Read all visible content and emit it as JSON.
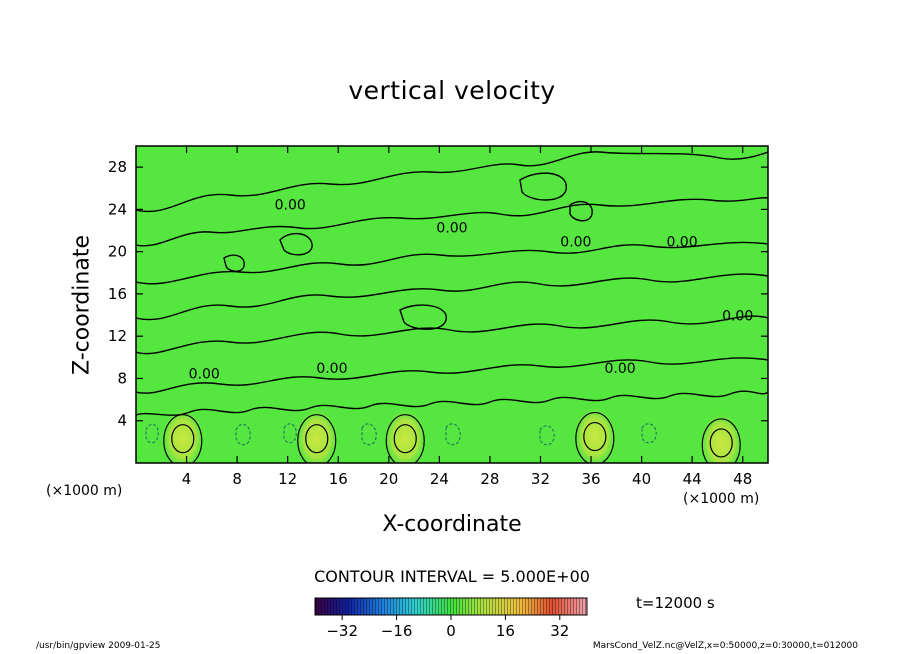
{
  "chart_data": {
    "type": "heatmap",
    "title": "vertical velocity",
    "xlabel": "X-coordinate",
    "ylabel": "Z-coordinate",
    "x_unit": "(×1000 m)",
    "z_unit": "(×1000 m)",
    "xlim": [
      0,
      50
    ],
    "ylim": [
      0,
      30
    ],
    "x_ticks": [
      4,
      8,
      12,
      16,
      20,
      24,
      28,
      32,
      36,
      40,
      44,
      48
    ],
    "y_ticks": [
      4,
      8,
      12,
      16,
      20,
      24,
      28
    ],
    "contour_interval": "CONTOUR INTERVAL = 5.000E+00",
    "contour_labels": [
      {
        "text": "0.00",
        "x": 12.2,
        "z": 24.0
      },
      {
        "text": "0.00",
        "x": 25.0,
        "z": 21.8
      },
      {
        "text": "0.00",
        "x": 34.8,
        "z": 20.5
      },
      {
        "text": "0.00",
        "x": 43.2,
        "z": 20.5
      },
      {
        "text": "0.00",
        "x": 47.6,
        "z": 13.5
      },
      {
        "text": "0.00",
        "x": 5.4,
        "z": 8.0
      },
      {
        "text": "0.00",
        "x": 15.5,
        "z": 8.5
      },
      {
        "text": "0.00",
        "x": 38.3,
        "z": 8.5
      }
    ],
    "updraft_cores": [
      {
        "x": 3.7,
        "z": 2.3
      },
      {
        "x": 14.3,
        "z": 2.3
      },
      {
        "x": 21.3,
        "z": 2.3
      },
      {
        "x": 36.3,
        "z": 2.5
      },
      {
        "x": 46.3,
        "z": 1.9
      }
    ],
    "colorbar": {
      "min": -40,
      "max": 40,
      "tick_labels": [
        "−32",
        "−16",
        "0",
        "16",
        "32"
      ],
      "tick_values": [
        -32,
        -16,
        0,
        16,
        32
      ]
    },
    "time": "t=12000 s",
    "colors": {
      "background_field": "#55e640",
      "contour": "#000000"
    }
  },
  "footer": {
    "left": "/usr/bin/gpview   2009-01-25",
    "right": "MarsCond_VelZ.nc@VelZ,x=0:50000,z=0:30000,t=012000"
  }
}
